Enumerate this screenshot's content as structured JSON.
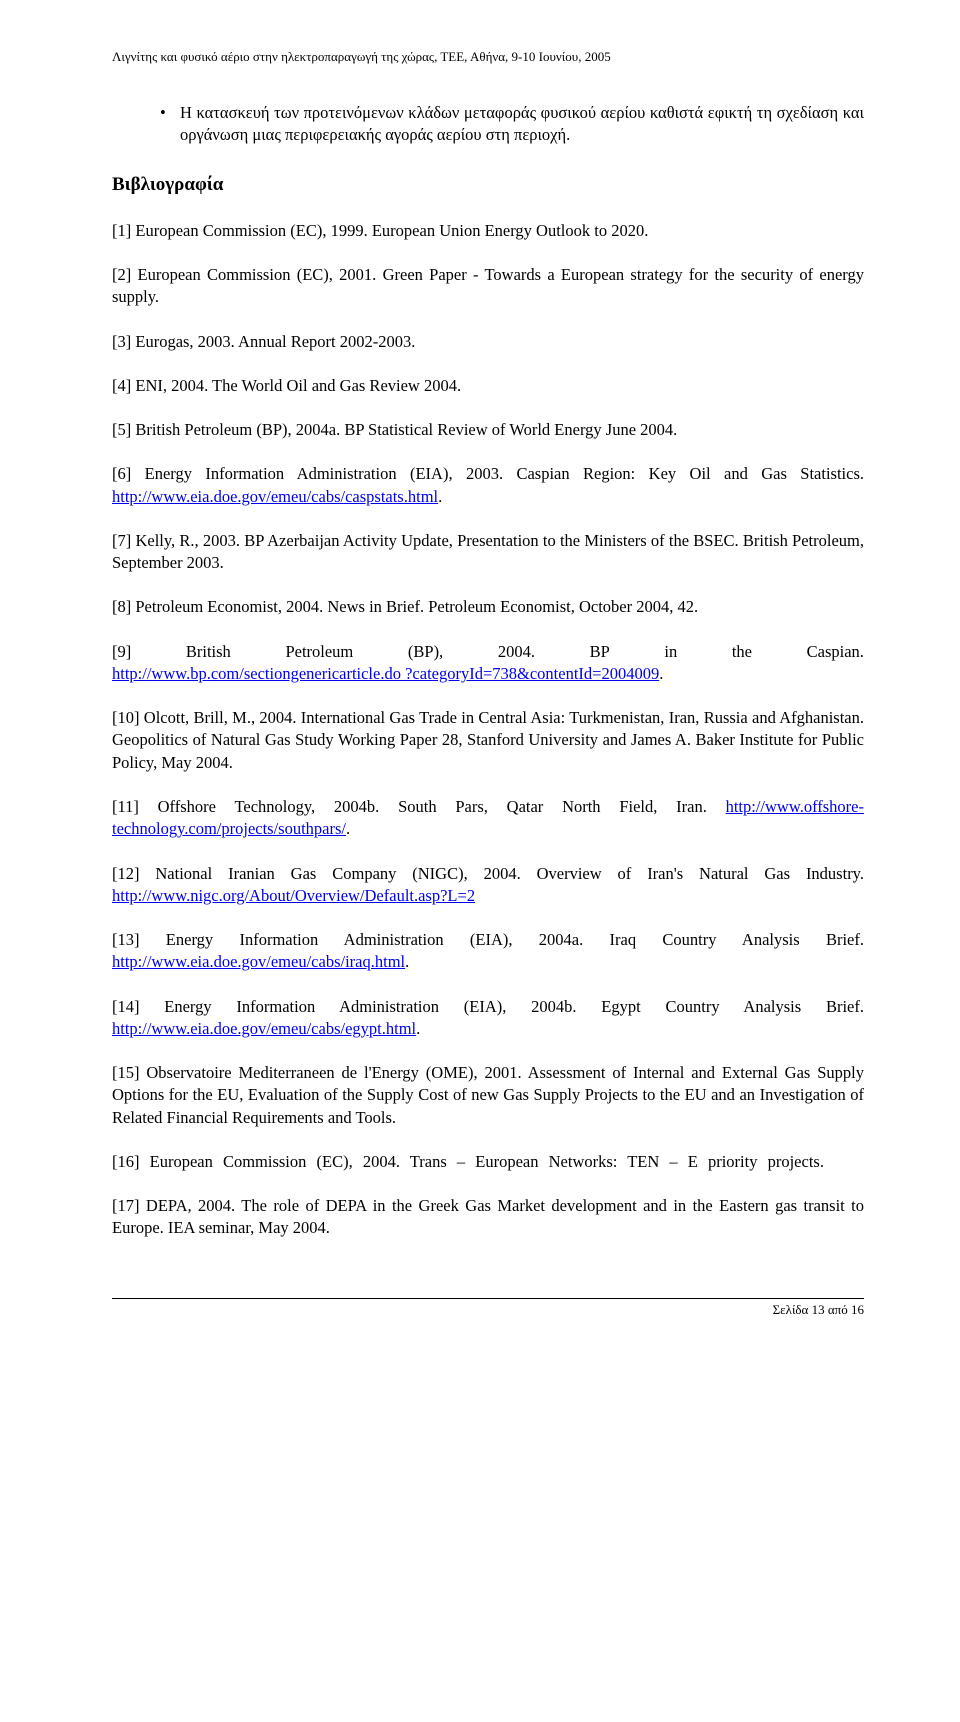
{
  "header": "Λιγνίτης και φυσικό αέριο στην ηλεκτροπαραγωγή της χώρας, ΤΕΕ, Αθήνα, 9-10 Ιουνίου, 2005",
  "bullet": "Η κατασκευή των προτεινόμενων κλάδων μεταφοράς φυσικού αερίου καθιστά εφικτή τη σχεδίαση και οργάνωση μιας περιφερειακής αγοράς αερίου στη περιοχή.",
  "section": "Βιβλιογραφία",
  "r1": "[1] European Commission (EC), 1999. European Union Energy Outlook to 2020.",
  "r2": "[2] European Commission (EC), 2001. Green Paper - Towards a European strategy for the security of energy supply.",
  "r3": "[3] Eurogas, 2003. Annual Report 2002-2003.",
  "r4": "[4] ENI, 2004. The World Oil and Gas Review 2004.",
  "r5": "[5] British Petroleum (BP), 2004a. BP Statistical Review of World Energy June 2004.",
  "r6a": "[6] Energy Information Administration (EIA), 2003. Caspian Region: Key Oil and Gas Statistics. ",
  "r6link": "http://www.eia.doe.gov/emeu/cabs/caspstats.html",
  "r6b": ".",
  "r7": " [7] Kelly, R., 2003. BP Azerbaijan Activity Update, Presentation to the Ministers of the BSEC. British Petroleum, September 2003.",
  "r8": "[8] Petroleum Economist, 2004. News in Brief. Petroleum Economist, October 2004, 42.",
  "r9_parts": [
    "[9]",
    "British",
    "Petroleum",
    "(BP),",
    "2004.",
    "BP",
    "in",
    "the",
    "Caspian."
  ],
  "r9link": "http://www.bp.com/sectiongenericarticle.do ?categoryId=738&contentId=2004009",
  "r9b": ".",
  "r10": "[10] Olcott, Brill, M., 2004. International Gas Trade in Central Asia: Turkmenistan, Iran, Russia and Afghanistan. Geopolitics of Natural Gas Study Working Paper 28, Stanford University and James A. Baker Institute for Public Policy, May 2004.",
  "r11a": "[11] Offshore Technology, 2004b. South Pars, Qatar North Field, Iran. ",
  "r11link": "http://www.offshore-technology.com/projects/southpars/",
  "r11b": ".",
  "r12a": "[12] National Iranian Gas Company (NIGC), 2004. Overview of Iran's Natural Gas Industry. ",
  "r12link": "http://www.nigc.org/About/Overview/Default.asp?L=2",
  "r13a": "[13] Energy Information Administration (EIA), 2004a. Iraq Country Analysis Brief. ",
  "r13link": "http://www.eia.doe.gov/emeu/cabs/iraq.html",
  "r13b": ".",
  "r14a": "[14] Energy Information Administration (EIA), 2004b. Egypt Country Analysis Brief. ",
  "r14link": "http://www.eia.doe.gov/emeu/cabs/egypt.html",
  "r14b": ".",
  "r15": "[15] Observatoire Mediterraneen de l'Energy (OME), 2001. Assessment of Internal and External Gas Supply Options for the EU, Evaluation of the Supply Cost of new Gas Supply Projects to the EU and an Investigation of Related Financial Requirements and Tools.",
  "r16": "[16] European Commission (EC), 2004. Trans – European Networks: TEN – E priority projects.",
  "r17": "[17] DEPA, 2004. The role of DEPA in the Greek Gas Market development and in the Eastern gas transit to Europe. IEA seminar, May 2004.",
  "footer": "Σελίδα 13 από 16"
}
